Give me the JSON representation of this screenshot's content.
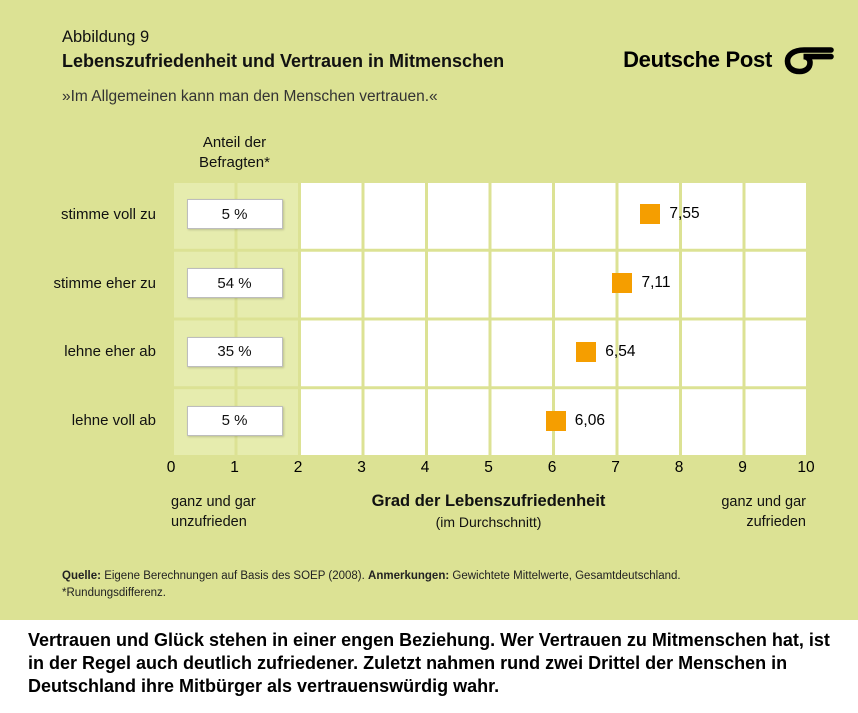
{
  "page": {
    "figure_label": "Abbildung 9",
    "title": "Lebenszufriedenheit und Vertrauen in Mitmenschen",
    "subtitle": "»Im Allgemeinen kann man den Menschen vertrauen.«",
    "brand": "Deutsche Post"
  },
  "chart_data": {
    "type": "scatter",
    "title": "Lebenszufriedenheit und Vertrauen in Mitmenschen",
    "column_header": "Anteil der\nBefragten*",
    "categories": [
      "stimme voll zu",
      "stimme eher zu",
      "lehne eher ab",
      "lehne voll ab"
    ],
    "values": [
      7.55,
      7.11,
      6.54,
      6.06
    ],
    "rows": [
      {
        "label": "stimme voll zu",
        "share": "5 %",
        "value": 7.55,
        "value_label": "7,55"
      },
      {
        "label": "stimme eher zu",
        "share": "54 %",
        "value": 7.11,
        "value_label": "7,11"
      },
      {
        "label": "lehne eher ab",
        "share": "35 %",
        "value": 6.54,
        "value_label": "6,54"
      },
      {
        "label": "lehne voll ab",
        "share": "5 %",
        "value": 6.06,
        "value_label": "6,06"
      }
    ],
    "x_axis": {
      "min": 0,
      "max": 10,
      "ticks": [
        0,
        1,
        2,
        3,
        4,
        5,
        6,
        7,
        8,
        9,
        10
      ],
      "label": "Grad der Lebenszufriedenheit",
      "sublabel": "(im Durchschnitt)",
      "left_caption": "ganz und gar\nunzufrieden",
      "right_caption": "ganz und gar\nzufrieden"
    },
    "shaded_region": [
      0,
      2
    ],
    "grid": true,
    "legend": "none",
    "marker_color": "#f59e00",
    "colors": {
      "background": "#dce294",
      "band": "#e6ecae",
      "plot": "#ffffff",
      "marker": "#f59e00"
    }
  },
  "source": {
    "quelle_label": "Quelle:",
    "quelle_text": "Eigene Berechnungen auf Basis des SOEP (2008).",
    "anmerkungen_label": "Anmerkungen:",
    "anmerkungen_text": "Gewichtete Mittelwerte, Gesamtdeutschland.",
    "footnote": "*Rundungsdifferenz."
  },
  "caption": "Vertrauen und Glück stehen in einer engen Beziehung. Wer Vertrauen zu Mitmenschen hat, ist in der Regel auch deutlich zufriedener. Zuletzt nahmen rund zwei Drittel der Menschen in Deutschland ihre Mitbürger als vertrauenswürdig wahr."
}
